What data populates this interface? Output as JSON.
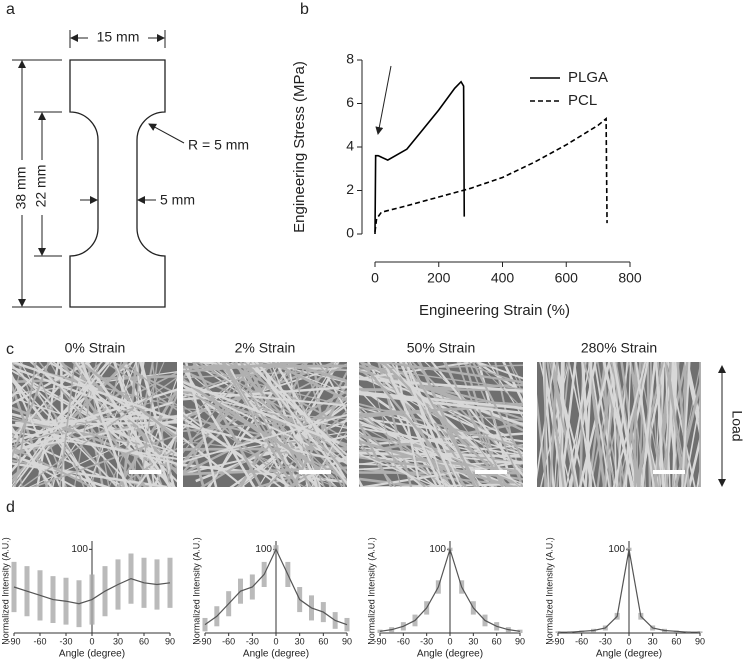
{
  "panel_labels": [
    "a",
    "b",
    "c",
    "d"
  ],
  "specimen": {
    "width": "15 mm",
    "length": "38 mm",
    "gauge_length": "22 mm",
    "radius": "R = 5 mm",
    "gauge_width": "5 mm"
  },
  "images": {
    "titles": [
      "0% Strain",
      "2% Strain",
      "50% Strain",
      "280% Strain"
    ],
    "load": "Load"
  },
  "chart_data": [
    {
      "type": "line",
      "xlabel": "Engineering Strain (%)",
      "ylabel": "Engineering Stress (MPa)",
      "xlim": [
        0,
        800
      ],
      "xticks": [
        0,
        200,
        400,
        600,
        800
      ],
      "ylim": [
        0,
        8
      ],
      "yticks": [
        0,
        2,
        4,
        6,
        8
      ],
      "legend": "upper right",
      "series": [
        {
          "name": "PLGA",
          "color": "#000000",
          "linestyle": "solid",
          "x": [
            0,
            2,
            10,
            40,
            100,
            150,
            200,
            250,
            270,
            278,
            280
          ],
          "values": [
            0,
            3.6,
            3.6,
            3.4,
            3.9,
            4.8,
            5.7,
            6.7,
            7.0,
            6.8,
            0.8
          ]
        },
        {
          "name": "PCL",
          "color": "#000000",
          "linestyle": "dashed",
          "x": [
            0,
            5,
            20,
            100,
            200,
            300,
            400,
            500,
            600,
            700,
            725,
            728
          ],
          "values": [
            0.1,
            0.7,
            1.0,
            1.3,
            1.7,
            2.1,
            2.6,
            3.3,
            4.1,
            5.0,
            5.3,
            0.5
          ]
        }
      ]
    },
    {
      "type": "distribution",
      "xlabel": "Angle (degree)",
      "ylabel": "Normalized Intensity (A.U.)",
      "xlim": [
        -90,
        90
      ],
      "xticks": [
        -90,
        -60,
        -30,
        0,
        30,
        60,
        90
      ],
      "ylim": [
        0,
        110
      ],
      "yticks": [
        100
      ],
      "color": "#555555",
      "x": [
        -90,
        -75,
        -60,
        -45,
        -30,
        -15,
        0,
        15,
        30,
        45,
        60,
        75,
        90
      ],
      "values": [
        55,
        50,
        45,
        40,
        38,
        35,
        40,
        50,
        58,
        65,
        60,
        58,
        60
      ],
      "errors": [
        30,
        30,
        30,
        28,
        28,
        28,
        30,
        30,
        30,
        30,
        30,
        30,
        30
      ]
    },
    {
      "type": "distribution",
      "xlabel": "Angle (degree)",
      "ylabel": "Normalized Intensity (A.U.)",
      "xlim": [
        -90,
        90
      ],
      "xticks": [
        -90,
        -60,
        -30,
        0,
        30,
        60,
        90
      ],
      "ylim": [
        0,
        110
      ],
      "yticks": [
        100
      ],
      "color": "#555555",
      "x": [
        -90,
        -75,
        -60,
        -45,
        -30,
        -15,
        0,
        15,
        30,
        45,
        60,
        75,
        90
      ],
      "values": [
        10,
        20,
        35,
        50,
        55,
        70,
        100,
        70,
        40,
        30,
        25,
        15,
        10
      ],
      "errors": [
        8,
        12,
        15,
        15,
        15,
        15,
        5,
        15,
        15,
        15,
        12,
        10,
        8
      ]
    },
    {
      "type": "distribution",
      "xlabel": "Angle (degree)",
      "ylabel": "Normalized Intensity (A.U.)",
      "xlim": [
        -90,
        90
      ],
      "xticks": [
        -90,
        -60,
        -30,
        0,
        30,
        60,
        90
      ],
      "ylim": [
        0,
        110
      ],
      "yticks": [
        100
      ],
      "color": "#555555",
      "x": [
        -90,
        -75,
        -60,
        -45,
        -30,
        -15,
        0,
        15,
        30,
        45,
        60,
        75,
        90
      ],
      "values": [
        2,
        4,
        8,
        15,
        30,
        55,
        100,
        55,
        30,
        15,
        8,
        4,
        2
      ],
      "errors": [
        2,
        3,
        5,
        7,
        8,
        8,
        2,
        8,
        8,
        7,
        5,
        3,
        2
      ]
    },
    {
      "type": "distribution",
      "xlabel": "Angle (degree)",
      "ylabel": "Normalized Intensity (A.U.)",
      "xlim": [
        -90,
        90
      ],
      "xticks": [
        -90,
        -60,
        -30,
        0,
        30,
        60,
        90
      ],
      "ylim": [
        0,
        110
      ],
      "yticks": [
        100
      ],
      "color": "#555555",
      "x": [
        -90,
        -75,
        -60,
        -45,
        -30,
        -15,
        0,
        15,
        30,
        45,
        60,
        75,
        90
      ],
      "values": [
        1,
        1,
        2,
        3,
        6,
        20,
        100,
        20,
        6,
        3,
        2,
        1,
        1
      ],
      "errors": [
        1,
        1,
        1,
        2,
        3,
        4,
        2,
        4,
        3,
        2,
        1,
        1,
        1
      ]
    }
  ]
}
